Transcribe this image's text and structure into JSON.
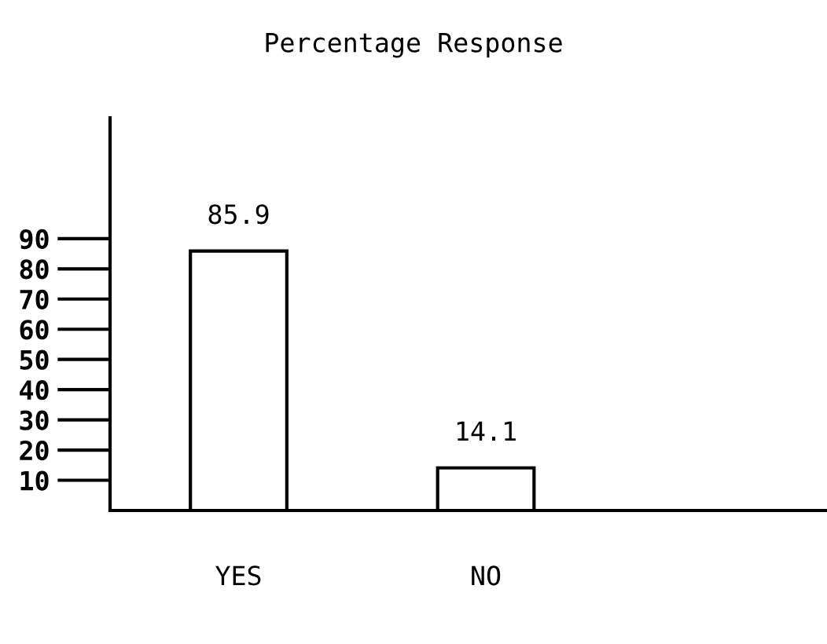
{
  "chart_data": {
    "type": "bar",
    "title": "Percentage Response",
    "categories": [
      "YES",
      "NO"
    ],
    "values": [
      85.9,
      14.1
    ],
    "color": "#ffffff",
    "ylim": [
      0,
      130
    ],
    "yticks": [
      10,
      20,
      30,
      40,
      50,
      60,
      70,
      80,
      90
    ],
    "data_labels": true,
    "grid": false
  }
}
